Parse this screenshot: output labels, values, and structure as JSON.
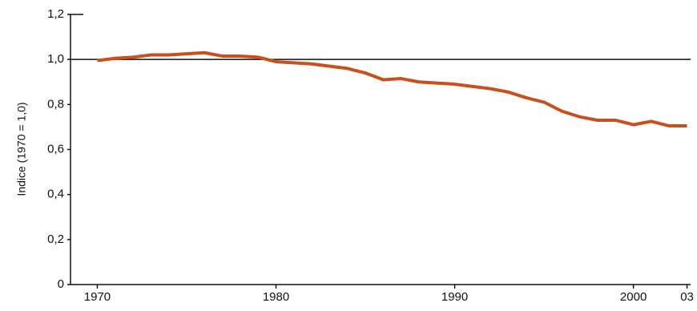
{
  "chart_data": {
    "type": "line",
    "y_label": "Indice (1970 = 1,0)",
    "x": [
      1970,
      1971,
      1972,
      1973,
      1974,
      1975,
      1976,
      1977,
      1978,
      1979,
      1980,
      1981,
      1982,
      1983,
      1984,
      1985,
      1986,
      1987,
      1988,
      1989,
      1990,
      1991,
      1992,
      1993,
      1994,
      1995,
      1996,
      1997,
      1998,
      1999,
      2000,
      2001,
      2002,
      2003
    ],
    "series": [
      {
        "color": "#c8501a",
        "values": [
          0.995,
          1.005,
          1.01,
          1.02,
          1.02,
          1.025,
          1.03,
          1.015,
          1.015,
          1.01,
          0.99,
          0.985,
          0.98,
          0.97,
          0.96,
          0.94,
          0.91,
          0.915,
          0.9,
          0.895,
          0.89,
          0.88,
          0.87,
          0.855,
          0.83,
          0.81,
          0.77,
          0.745,
          0.73,
          0.73,
          0.71,
          0.725,
          0.705,
          0.705
        ]
      }
    ],
    "reference_line": 1,
    "xlim": [
      1968.5,
      2003.2
    ],
    "ylim": [
      0,
      1.2
    ],
    "xticks": [
      1970,
      1980,
      1990,
      2000,
      {
        "value": 2003,
        "label": "03"
      }
    ],
    "yticks": [
      0,
      {
        "value": 0.2,
        "label": "0,2"
      },
      {
        "value": 0.4,
        "label": "0,4"
      },
      {
        "value": 0.6,
        "label": "0,6"
      },
      {
        "value": 0.8,
        "label": "0,8"
      },
      {
        "value": 1,
        "label": "1,0"
      },
      {
        "value": 1.2,
        "label": "1,2"
      }
    ]
  }
}
